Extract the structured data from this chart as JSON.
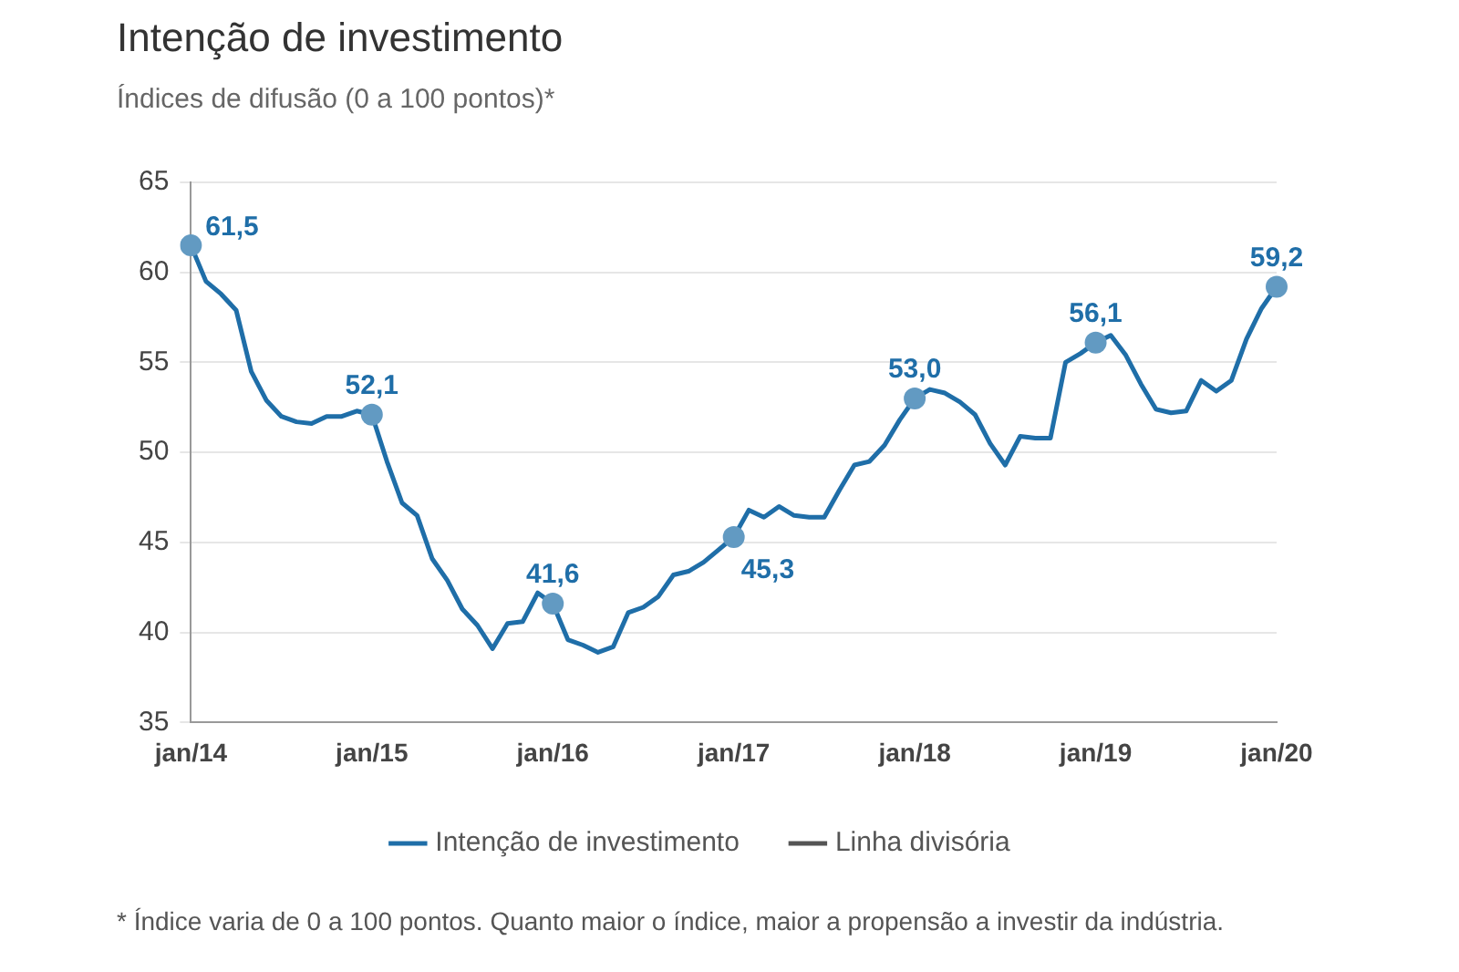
{
  "chart_data": {
    "type": "line",
    "title": "Intenção de investimento",
    "subtitle": "Índices de difusão (0 a 100 pontos)*",
    "categories": [
      "jan/14",
      null,
      null,
      null,
      null,
      null,
      null,
      null,
      null,
      null,
      null,
      null,
      "jan/15",
      null,
      null,
      null,
      null,
      null,
      null,
      null,
      null,
      null,
      null,
      null,
      "jan/16",
      null,
      null,
      null,
      null,
      null,
      null,
      null,
      null,
      null,
      null,
      null,
      "jan/17",
      null,
      null,
      null,
      null,
      null,
      null,
      null,
      null,
      null,
      null,
      null,
      "jan/18",
      null,
      null,
      null,
      null,
      null,
      null,
      null,
      null,
      null,
      null,
      null,
      "jan/19",
      null,
      null,
      null,
      null,
      null,
      null,
      null,
      null,
      null,
      null,
      null,
      "jan/20"
    ],
    "series": [
      {
        "name": "Intenção de investimento",
        "color": "#1f6ea8",
        "values": [
          61.5,
          59.5,
          58.8,
          57.9,
          54.5,
          52.9,
          52.0,
          51.7,
          51.6,
          52.0,
          52.0,
          52.3,
          52.1,
          49.5,
          47.2,
          46.5,
          44.1,
          42.9,
          41.3,
          40.4,
          39.1,
          40.5,
          40.6,
          42.2,
          41.6,
          39.6,
          39.3,
          38.9,
          39.2,
          41.1,
          41.4,
          42.0,
          43.2,
          43.4,
          43.9,
          44.6,
          45.3,
          46.8,
          46.4,
          47.0,
          46.5,
          46.4,
          46.4,
          47.9,
          49.3,
          49.5,
          50.4,
          51.8,
          53.0,
          53.5,
          53.3,
          52.8,
          52.1,
          50.5,
          49.3,
          50.9,
          50.8,
          50.8,
          55.0,
          55.5,
          56.1,
          56.5,
          55.4,
          53.8,
          52.4,
          52.2,
          52.3,
          54.0,
          53.4,
          54.0,
          56.3,
          58.0,
          59.2
        ],
        "value_labels": [
          "61,5",
          null,
          null,
          null,
          null,
          null,
          null,
          null,
          null,
          null,
          null,
          null,
          "52,1",
          null,
          null,
          null,
          null,
          null,
          null,
          null,
          null,
          null,
          null,
          null,
          "41,6",
          null,
          null,
          null,
          null,
          null,
          null,
          null,
          null,
          null,
          null,
          null,
          "45,3",
          null,
          null,
          null,
          null,
          null,
          null,
          null,
          null,
          null,
          null,
          null,
          "53,0",
          null,
          null,
          null,
          null,
          null,
          null,
          null,
          null,
          null,
          null,
          null,
          "56,1",
          null,
          null,
          null,
          null,
          null,
          null,
          null,
          null,
          null,
          null,
          null,
          "59,2"
        ]
      },
      {
        "name": "Linha divisória",
        "color": "#555555",
        "values": [
          null,
          null,
          null,
          null,
          null,
          null,
          null,
          null,
          null,
          null,
          null,
          null,
          null,
          null,
          null,
          null,
          null,
          null,
          null,
          null,
          null,
          null,
          null,
          null,
          null,
          null,
          null,
          null,
          null,
          null,
          null,
          null,
          null,
          null,
          null,
          null,
          null,
          null,
          null,
          null,
          null,
          null,
          null,
          null,
          null,
          null,
          null,
          null,
          null,
          null,
          null,
          null,
          null,
          null,
          null,
          null,
          null,
          null,
          null,
          null,
          null,
          null,
          null,
          null,
          null,
          null,
          null,
          null,
          null,
          null,
          null,
          null,
          null
        ]
      }
    ],
    "ylim": [
      35,
      65
    ],
    "yticks": [
      35,
      40,
      45,
      50,
      55,
      60,
      65
    ],
    "grid": "y",
    "legend": "bottom",
    "line_style": "solid",
    "annotations": [
      "* Índice varia de 0 a 100 pontos. Quanto maior o índice, maior a propensão a investir da indústria."
    ]
  }
}
